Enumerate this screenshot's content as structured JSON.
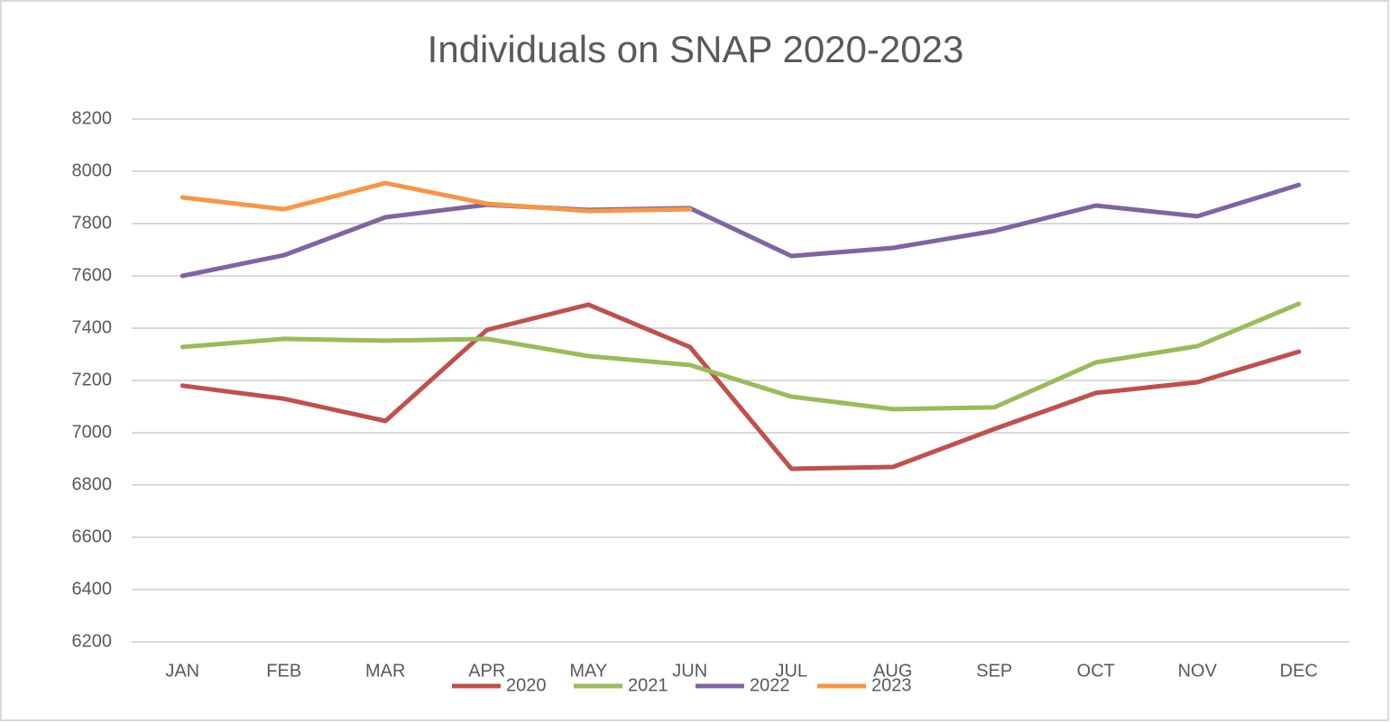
{
  "chart_data": {
    "type": "line",
    "title": "Individuals on SNAP 2020-2023",
    "categories": [
      "JAN",
      "FEB",
      "MAR",
      "APR",
      "MAY",
      "JUN",
      "JUL",
      "AUG",
      "SEP",
      "OCT",
      "NOV",
      "DEC"
    ],
    "series": [
      {
        "name": "2020",
        "color": "#c0504d",
        "values": [
          7180,
          7130,
          7045,
          7393,
          7490,
          7328,
          6862,
          6869,
          7014,
          7152,
          7193,
          7310
        ]
      },
      {
        "name": "2021",
        "color": "#9bbb59",
        "values": [
          7328,
          7359,
          7352,
          7359,
          7293,
          7259,
          7138,
          7090,
          7097,
          7269,
          7331,
          7493
        ]
      },
      {
        "name": "2022",
        "color": "#8064a2",
        "values": [
          7600,
          7679,
          7824,
          7872,
          7852,
          7859,
          7676,
          7707,
          7772,
          7869,
          7828,
          7948
        ]
      },
      {
        "name": "2023",
        "color": "#f79646",
        "values": [
          7900,
          7855,
          7955,
          7876,
          7848,
          7855,
          null,
          null,
          null,
          null,
          null,
          null
        ]
      }
    ],
    "ylim": [
      6200,
      8200
    ],
    "yticks": [
      6200,
      6400,
      6600,
      6800,
      7000,
      7200,
      7400,
      7600,
      7800,
      8000,
      8200
    ],
    "grid": true,
    "legend": "bottom"
  }
}
